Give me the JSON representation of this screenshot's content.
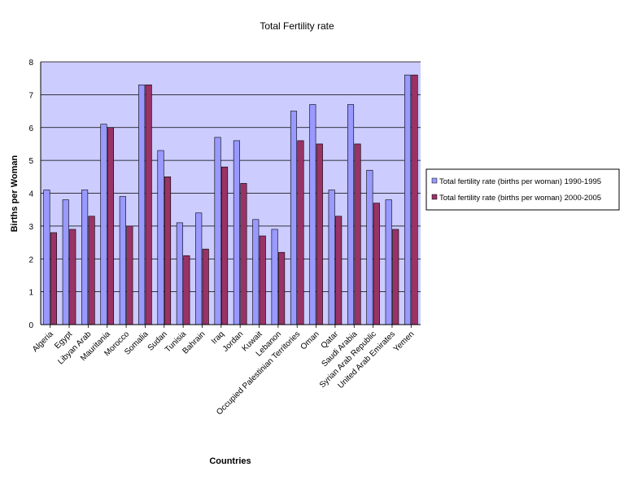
{
  "chart_data": {
    "type": "bar",
    "title": "Total Fertility rate",
    "xlabel": "Countries",
    "ylabel": "Births per Woman",
    "ylim": [
      0,
      8
    ],
    "yticks": [
      0,
      1,
      2,
      3,
      4,
      5,
      6,
      7,
      8
    ],
    "grid": true,
    "legend_position": "right",
    "categories": [
      "Algeria",
      "Egypt",
      "Libyan Arab",
      "Mauritania",
      "Morocco",
      "Somalia",
      "Sudan",
      "Tunisia",
      "Bahrain",
      "Iraq",
      "Jordan",
      "Kuwait",
      "Lebanon",
      "Occupied Palestinian Territories",
      "Oman",
      "Qatar",
      "Saudi Arabia",
      "Syrian Arab Republic",
      "United Arab Emirates",
      "Yemen"
    ],
    "series": [
      {
        "name": "Total fertility rate (births per woman) 1990-1995",
        "color": "#9999ff",
        "values": [
          4.1,
          3.8,
          4.1,
          6.1,
          3.9,
          7.3,
          5.3,
          3.1,
          3.4,
          5.7,
          5.6,
          3.2,
          2.9,
          6.5,
          6.7,
          4.1,
          6.7,
          4.7,
          3.8,
          7.6
        ]
      },
      {
        "name": "Total fertility rate (births per woman) 2000-2005",
        "color": "#993366",
        "values": [
          2.8,
          2.9,
          3.3,
          6.0,
          3.0,
          7.3,
          4.5,
          2.1,
          2.3,
          4.8,
          4.3,
          2.7,
          2.2,
          5.6,
          5.5,
          3.3,
          5.5,
          3.7,
          2.9,
          7.6
        ]
      }
    ],
    "plot_background": "#ccccff"
  }
}
